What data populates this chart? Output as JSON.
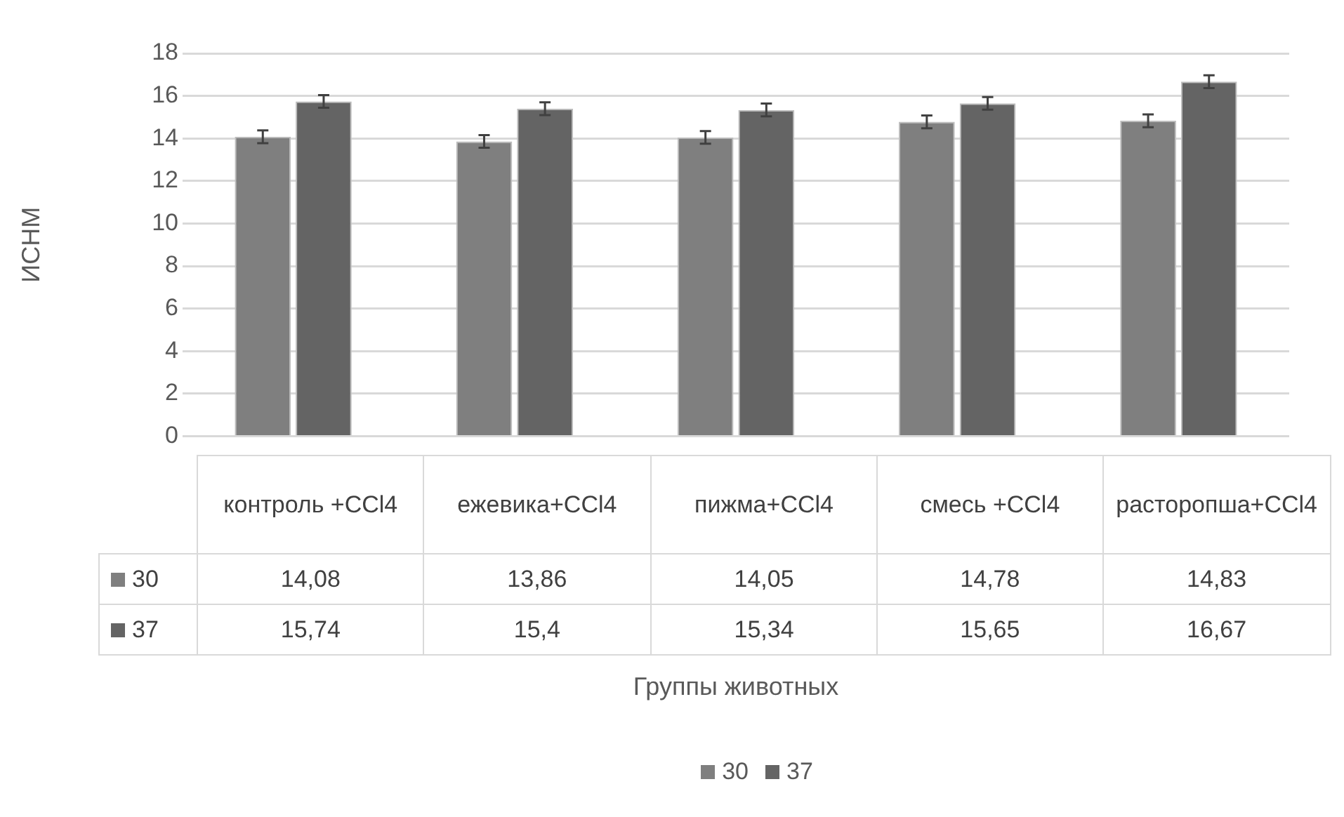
{
  "chart_data": {
    "type": "bar",
    "ylabel": "ИСНМ",
    "annotations": [
      "Группы животных"
    ],
    "categories": [
      "контроль +CCl4",
      "ежевика+CCl4",
      "пижма+CCl4",
      "смесь +CCl4",
      "расторопша+CCl4"
    ],
    "series": [
      {
        "name": "30",
        "color": "#7f7f7f",
        "values": [
          14.08,
          13.86,
          14.05,
          14.78,
          14.83
        ],
        "value_labels": [
          "14,08",
          "13,86",
          "14,05",
          "14,78",
          "14,83"
        ],
        "errors": [
          0.3,
          0.3,
          0.3,
          0.3,
          0.3
        ]
      },
      {
        "name": "37",
        "color": "#646464",
        "values": [
          15.74,
          15.4,
          15.34,
          15.65,
          16.67
        ],
        "value_labels": [
          "15,74",
          "15,4",
          "15,34",
          "15,65",
          "16,67"
        ],
        "errors": [
          0.3,
          0.3,
          0.3,
          0.3,
          0.3
        ]
      }
    ],
    "ylim": [
      0,
      18
    ],
    "yticks": [
      0,
      2,
      4,
      6,
      8,
      10,
      12,
      14,
      16,
      18
    ],
    "grid": "y",
    "legend": "bottom"
  }
}
